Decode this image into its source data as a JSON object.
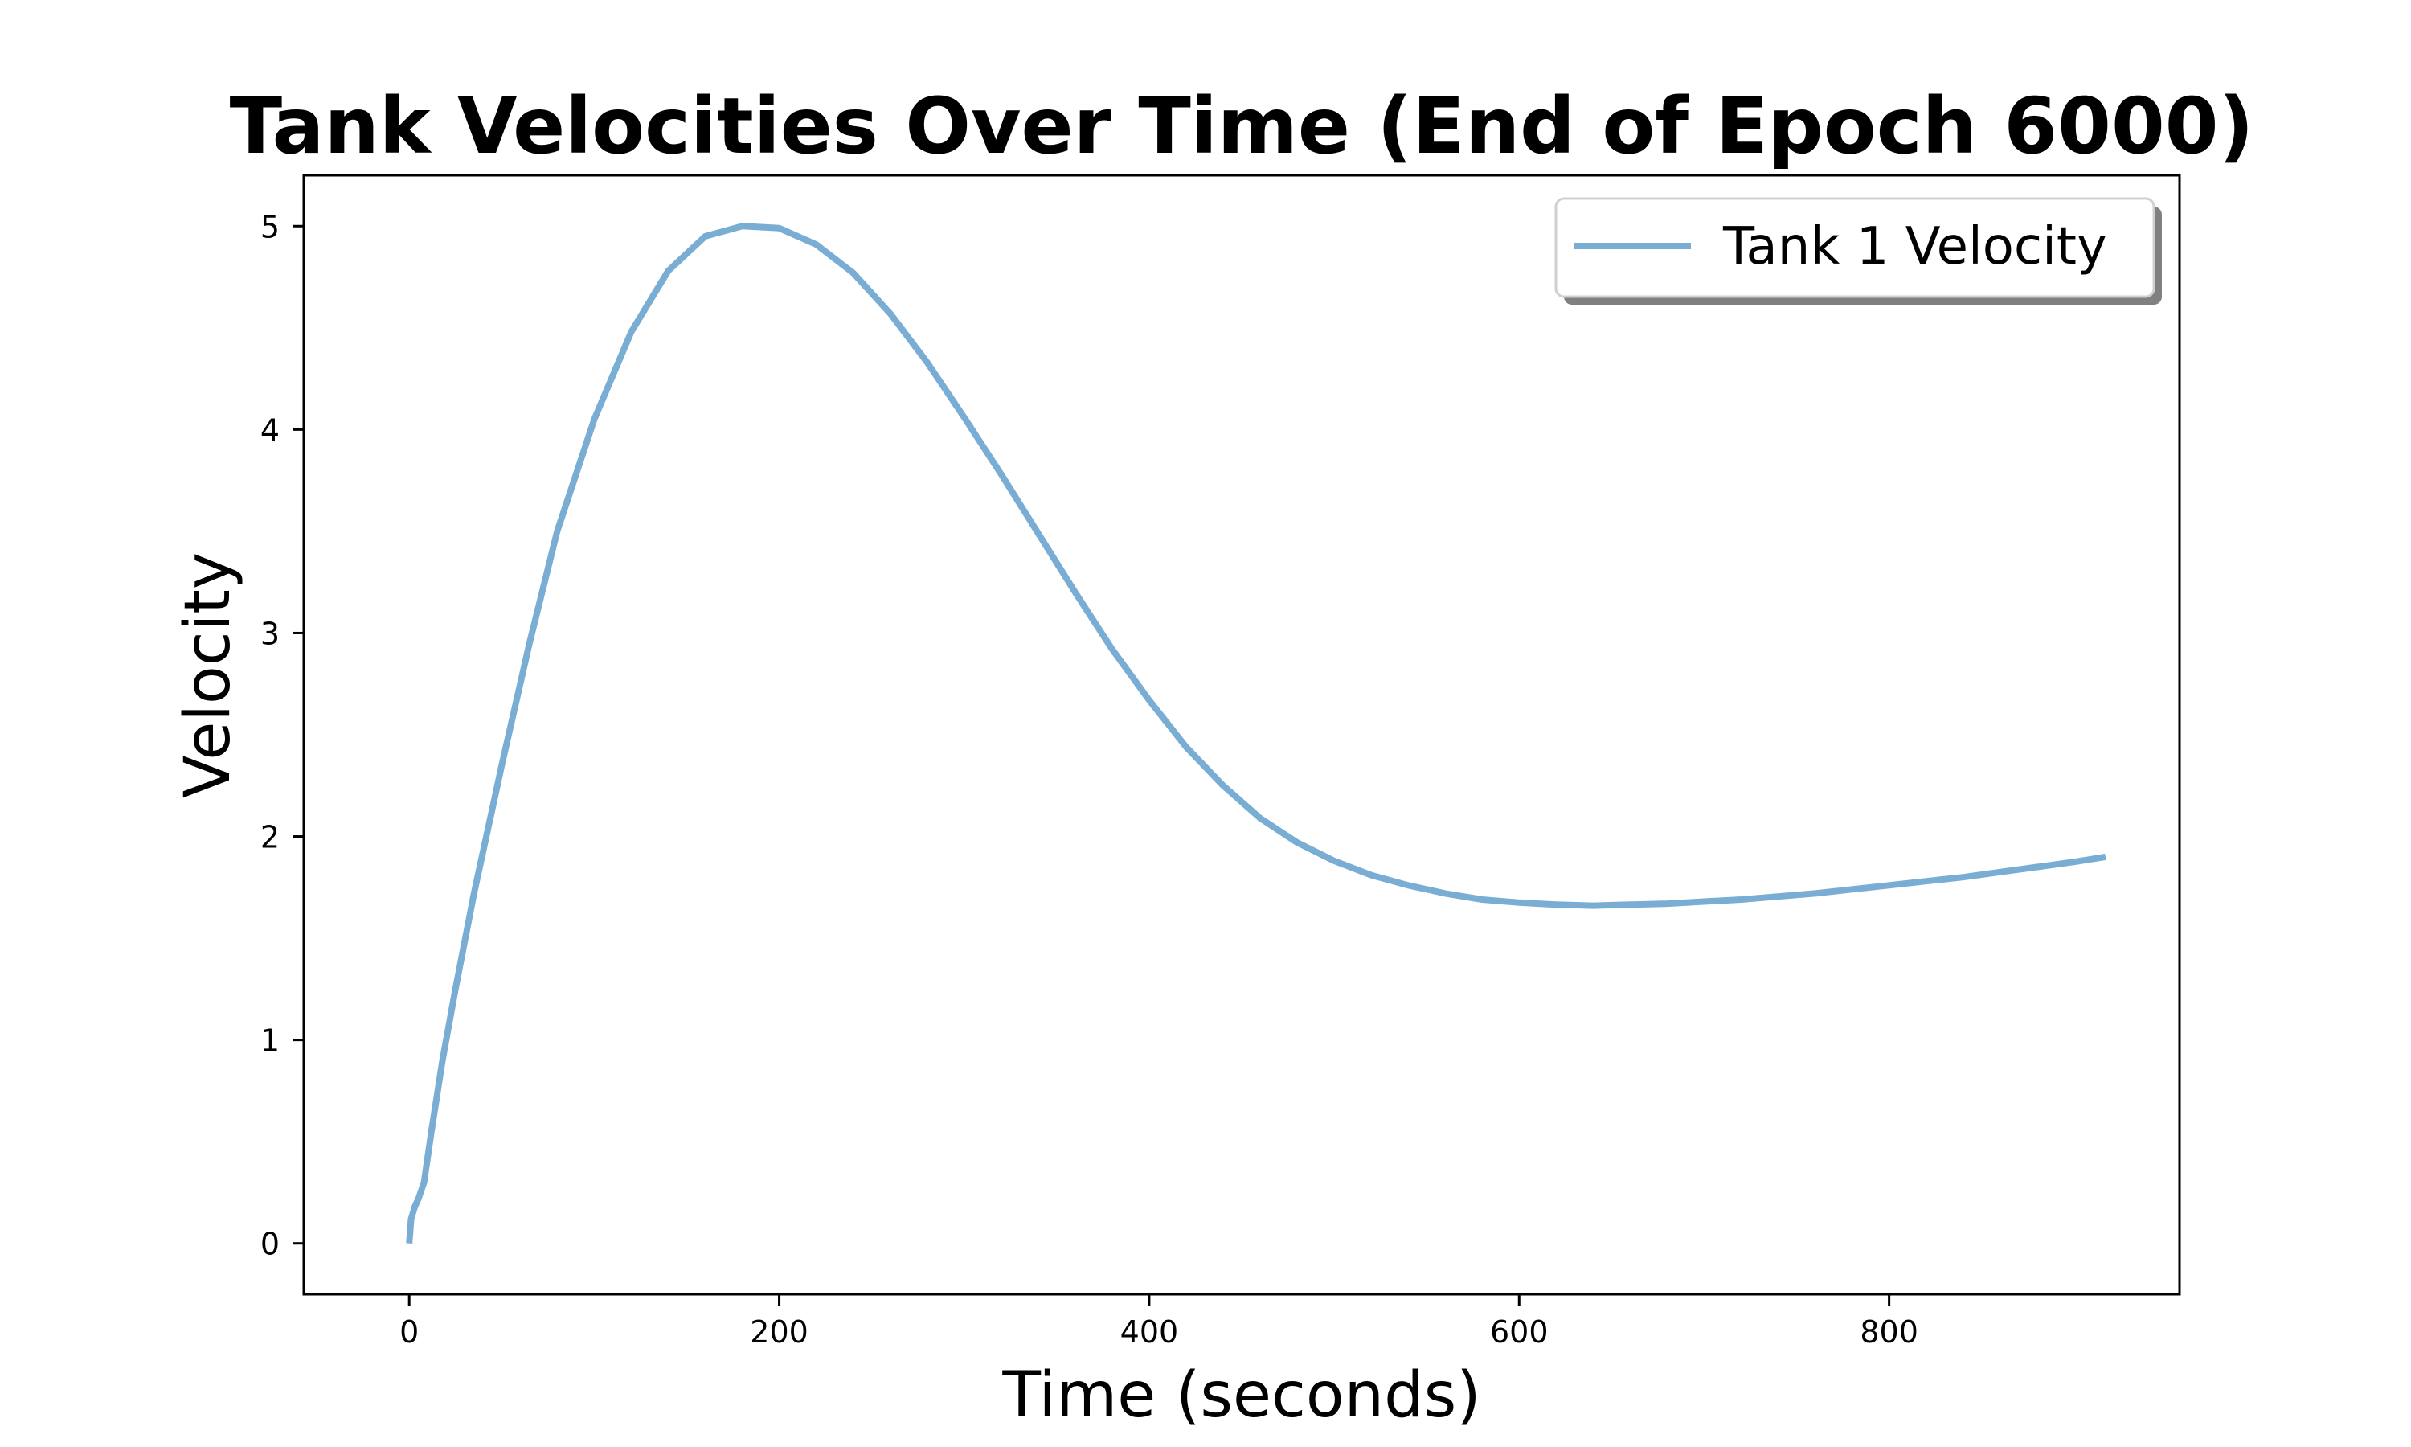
{
  "chart_data": {
    "type": "line",
    "title": "Tank Velocities Over Time (End of Epoch 6000)",
    "xlabel": "Time (seconds)",
    "ylabel": "Velocity",
    "xlim": [
      -57,
      957
    ],
    "ylim": [
      -0.25,
      5.25
    ],
    "xticks": [
      0,
      200,
      400,
      600,
      800
    ],
    "yticks": [
      0,
      1,
      2,
      3,
      4,
      5
    ],
    "grid": false,
    "legend_position": "top-right",
    "series": [
      {
        "name": "Tank 1 Velocity",
        "color": "#7aadd3",
        "x": [
          0,
          1,
          3,
          5,
          8,
          12,
          18,
          25,
          35,
          50,
          65,
          80,
          100,
          120,
          140,
          160,
          180,
          200,
          220,
          240,
          260,
          280,
          300,
          320,
          340,
          360,
          380,
          400,
          420,
          440,
          460,
          480,
          500,
          520,
          540,
          560,
          580,
          600,
          620,
          640,
          660,
          680,
          700,
          720,
          740,
          760,
          780,
          800,
          820,
          840,
          860,
          880,
          900,
          917
        ],
        "y": [
          0.0,
          0.12,
          0.18,
          0.22,
          0.3,
          0.55,
          0.9,
          1.25,
          1.72,
          2.35,
          2.95,
          3.5,
          4.05,
          4.48,
          4.78,
          4.95,
          5.0,
          4.99,
          4.91,
          4.77,
          4.57,
          4.33,
          4.06,
          3.78,
          3.49,
          3.2,
          2.92,
          2.67,
          2.44,
          2.25,
          2.09,
          1.97,
          1.88,
          1.81,
          1.76,
          1.72,
          1.69,
          1.675,
          1.665,
          1.66,
          1.665,
          1.67,
          1.68,
          1.69,
          1.705,
          1.72,
          1.74,
          1.76,
          1.78,
          1.8,
          1.825,
          1.85,
          1.875,
          1.9
        ]
      }
    ]
  }
}
